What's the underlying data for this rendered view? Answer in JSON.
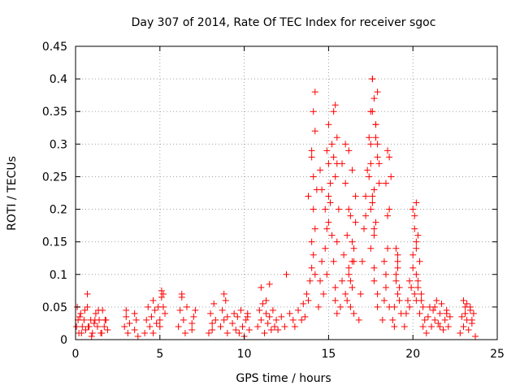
{
  "chart_data": {
    "type": "scatter",
    "title": "Day 307 of 2014, Rate Of TEC Index for receiver sgoc",
    "xlabel": "GPS time / hours",
    "ylabel": "ROTI / TECUs",
    "xlim": [
      0,
      25
    ],
    "ylim": [
      0,
      0.45
    ],
    "xticks": [
      "0",
      "5",
      "10",
      "15",
      "20",
      "25"
    ],
    "yticks": [
      "0",
      "0.05",
      "0.1",
      "0.15",
      "0.2",
      "0.25",
      "0.3",
      "0.35",
      "0.4",
      "0.45"
    ],
    "grid": true,
    "marker": "+",
    "marker_color": "#ff0000",
    "series": [
      {
        "name": "ROTI",
        "x": [
          0.05,
          0.1,
          0.15,
          0.2,
          0.3,
          0.4,
          0.5,
          0.6,
          0.7,
          0.8,
          0.9,
          1.0,
          1.1,
          1.2,
          1.3,
          1.4,
          1.5,
          1.6,
          1.7,
          1.8,
          1.9,
          0.25,
          0.35,
          0.55,
          0.75,
          0.95,
          1.15,
          1.35,
          1.55,
          1.75,
          0.7,
          2.9,
          3.0,
          3.1,
          3.2,
          3.0,
          3.5,
          3.6,
          3.7,
          3.5,
          4.1,
          4.2,
          4.3,
          4.4,
          4.5,
          4.6,
          4.7,
          4.8,
          4.9,
          5.0,
          5.1,
          5.2,
          5.3,
          4.6,
          5.0,
          5.1,
          5.2,
          6.1,
          6.2,
          6.3,
          6.4,
          6.5,
          6.6,
          6.3,
          6.9,
          7.0,
          7.1,
          6.9,
          7.9,
          8.0,
          8.1,
          8.2,
          8.3,
          8.1,
          8.6,
          8.7,
          8.8,
          8.9,
          9.0,
          8.8,
          9.0,
          9.3,
          9.4,
          9.5,
          9.6,
          9.7,
          9.8,
          9.9,
          10.0,
          10.1,
          10.2,
          10.3,
          10.2,
          10.8,
          10.9,
          11.0,
          11.1,
          11.2,
          11.3,
          11.4,
          11.5,
          11.6,
          11.7,
          11.8,
          11.9,
          11.0,
          11.3,
          11.5,
          12.0,
          12.2,
          12.4,
          12.5,
          12.7,
          12.9,
          13.0,
          13.2,
          13.4,
          13.5,
          13.6,
          13.7,
          13.8,
          13.9,
          14.0,
          14.1,
          14.2,
          13.8,
          14.0,
          14.1,
          14.2,
          14.0,
          14.1,
          14.2,
          14.3,
          14.0,
          14.1,
          14.2,
          14.4,
          14.5,
          14.6,
          14.7,
          14.8,
          14.9,
          15.0,
          15.1,
          15.2,
          14.5,
          14.6,
          14.8,
          15.0,
          14.9,
          15.0,
          15.1,
          14.9,
          15.0,
          15.2,
          15.3,
          15.4,
          15.5,
          15.6,
          15.3,
          15.4,
          15.5,
          15.3,
          15.4,
          15.5,
          15.4,
          15.5,
          15.7,
          15.8,
          15.9,
          16.0,
          16.1,
          16.2,
          16.3,
          16.4,
          16.5,
          16.6,
          15.8,
          16.0,
          16.2,
          16.4,
          16.0,
          16.2,
          16.4,
          16.1,
          16.3,
          16.5,
          16.2,
          16.4,
          16.6,
          16.3,
          16.5,
          16.8,
          16.9,
          17.0,
          17.1,
          17.2,
          17.3,
          17.4,
          17.5,
          17.6,
          17.7,
          17.8,
          17.9,
          18.0,
          17.2,
          17.5,
          17.7,
          17.9,
          17.4,
          17.6,
          17.8,
          17.5,
          17.7,
          17.9,
          17.6,
          17.8,
          18.0,
          17.7,
          17.9,
          17.6,
          17.8,
          17.5,
          17.7,
          17.9,
          17.5,
          17.6,
          17.7,
          18.2,
          18.3,
          18.4,
          18.5,
          18.6,
          18.7,
          18.4,
          18.5,
          18.6,
          18.5,
          18.3,
          18.4,
          18.6,
          18.8,
          18.9,
          19.0,
          19.1,
          19.2,
          19.3,
          19.0,
          19.1,
          19.2,
          19.1,
          18.9,
          19.0,
          19.1,
          19.5,
          19.6,
          19.7,
          19.8,
          19.9,
          20.0,
          20.1,
          20.2,
          20.3,
          20.4,
          19.8,
          20.0,
          20.2,
          20.0,
          20.1,
          20.2,
          20.1,
          20.2,
          20.3,
          20.2,
          20.3,
          20.4,
          20.5,
          20.6,
          20.7,
          20.5,
          20.6,
          20.8,
          20.9,
          21.0,
          21.1,
          21.2,
          21.3,
          21.4,
          21.5,
          21.6,
          21.7,
          21.8,
          21.9,
          22.0,
          22.1,
          22.2,
          21.3,
          21.6,
          22.0,
          22.8,
          22.9,
          23.0,
          23.1,
          23.2,
          23.3,
          23.4,
          23.5,
          23.6,
          23.7,
          23.0,
          23.2,
          23.5,
          23.1,
          23.4
        ],
        "y": [
          0.02,
          0.05,
          0.03,
          0.01,
          0.04,
          0.02,
          0.03,
          0.015,
          0.05,
          0.02,
          0.03,
          0.01,
          0.025,
          0.04,
          0.02,
          0.03,
          0.01,
          0.045,
          0.02,
          0.03,
          0.015,
          0.035,
          0.01,
          0.045,
          0.02,
          0.005,
          0.03,
          0.045,
          0.01,
          0.03,
          0.07,
          0.02,
          0.035,
          0.01,
          0.025,
          0.045,
          0.015,
          0.03,
          0.005,
          0.04,
          0.01,
          0.03,
          0.05,
          0.02,
          0.035,
          0.01,
          0.045,
          0.025,
          0.05,
          0.02,
          0.065,
          0.07,
          0.04,
          0.06,
          0.03,
          0.075,
          0.05,
          0.02,
          0.045,
          0.065,
          0.03,
          0.01,
          0.05,
          0.07,
          0.015,
          0.035,
          0.045,
          0.025,
          0.01,
          0.04,
          0.025,
          0.055,
          0.03,
          0.015,
          0.02,
          0.045,
          0.03,
          0.06,
          0.035,
          0.07,
          0.01,
          0.025,
          0.04,
          0.015,
          0.035,
          0.01,
          0.045,
          0.02,
          0.005,
          0.03,
          0.04,
          0.015,
          0.035,
          0.02,
          0.045,
          0.03,
          0.055,
          0.01,
          0.04,
          0.025,
          0.035,
          0.015,
          0.045,
          0.02,
          0.03,
          0.08,
          0.06,
          0.085,
          0.015,
          0.035,
          0.02,
          0.1,
          0.04,
          0.03,
          0.02,
          0.045,
          0.03,
          0.055,
          0.035,
          0.07,
          0.06,
          0.09,
          0.15,
          0.2,
          0.17,
          0.22,
          0.28,
          0.35,
          0.38,
          0.29,
          0.25,
          0.32,
          0.23,
          0.11,
          0.13,
          0.1,
          0.05,
          0.09,
          0.12,
          0.07,
          0.14,
          0.1,
          0.18,
          0.21,
          0.16,
          0.26,
          0.23,
          0.2,
          0.27,
          0.17,
          0.22,
          0.24,
          0.29,
          0.33,
          0.3,
          0.12,
          0.08,
          0.15,
          0.2,
          0.35,
          0.36,
          0.31,
          0.28,
          0.25,
          0.27,
          0.06,
          0.04,
          0.05,
          0.09,
          0.13,
          0.07,
          0.16,
          0.11,
          0.19,
          0.08,
          0.14,
          0.22,
          0.27,
          0.24,
          0.29,
          0.26,
          0.3,
          0.2,
          0.12,
          0.06,
          0.09,
          0.04,
          0.1,
          0.15,
          0.18,
          0.05,
          0.12,
          0.03,
          0.07,
          0.12,
          0.17,
          0.22,
          0.26,
          0.31,
          0.35,
          0.4,
          0.37,
          0.33,
          0.28,
          0.24,
          0.19,
          0.14,
          0.09,
          0.05,
          0.25,
          0.21,
          0.18,
          0.3,
          0.23,
          0.38,
          0.4,
          0.33,
          0.27,
          0.11,
          0.07,
          0.35,
          0.31,
          0.2,
          0.16,
          0.3,
          0.27,
          0.22,
          0.17,
          0.03,
          0.06,
          0.1,
          0.14,
          0.2,
          0.25,
          0.24,
          0.19,
          0.28,
          0.29,
          0.12,
          0.08,
          0.05,
          0.03,
          0.05,
          0.09,
          0.12,
          0.08,
          0.04,
          0.14,
          0.11,
          0.06,
          0.07,
          0.02,
          0.1,
          0.13,
          0.02,
          0.04,
          0.06,
          0.05,
          0.08,
          0.11,
          0.07,
          0.14,
          0.16,
          0.12,
          0.09,
          0.2,
          0.21,
          0.13,
          0.17,
          0.15,
          0.19,
          0.1,
          0.08,
          0.06,
          0.09,
          0.04,
          0.07,
          0.05,
          0.03,
          0.06,
          0.02,
          0.01,
          0.035,
          0.05,
          0.02,
          0.045,
          0.03,
          0.06,
          0.025,
          0.04,
          0.055,
          0.015,
          0.03,
          0.045,
          0.02,
          0.035,
          0.05,
          0.02,
          0.04,
          0.01,
          0.035,
          0.02,
          0.05,
          0.03,
          0.015,
          0.045,
          0.025,
          0.04,
          0.005,
          0.06,
          0.055,
          0.03,
          0.04,
          0.05
        ]
      }
    ]
  }
}
